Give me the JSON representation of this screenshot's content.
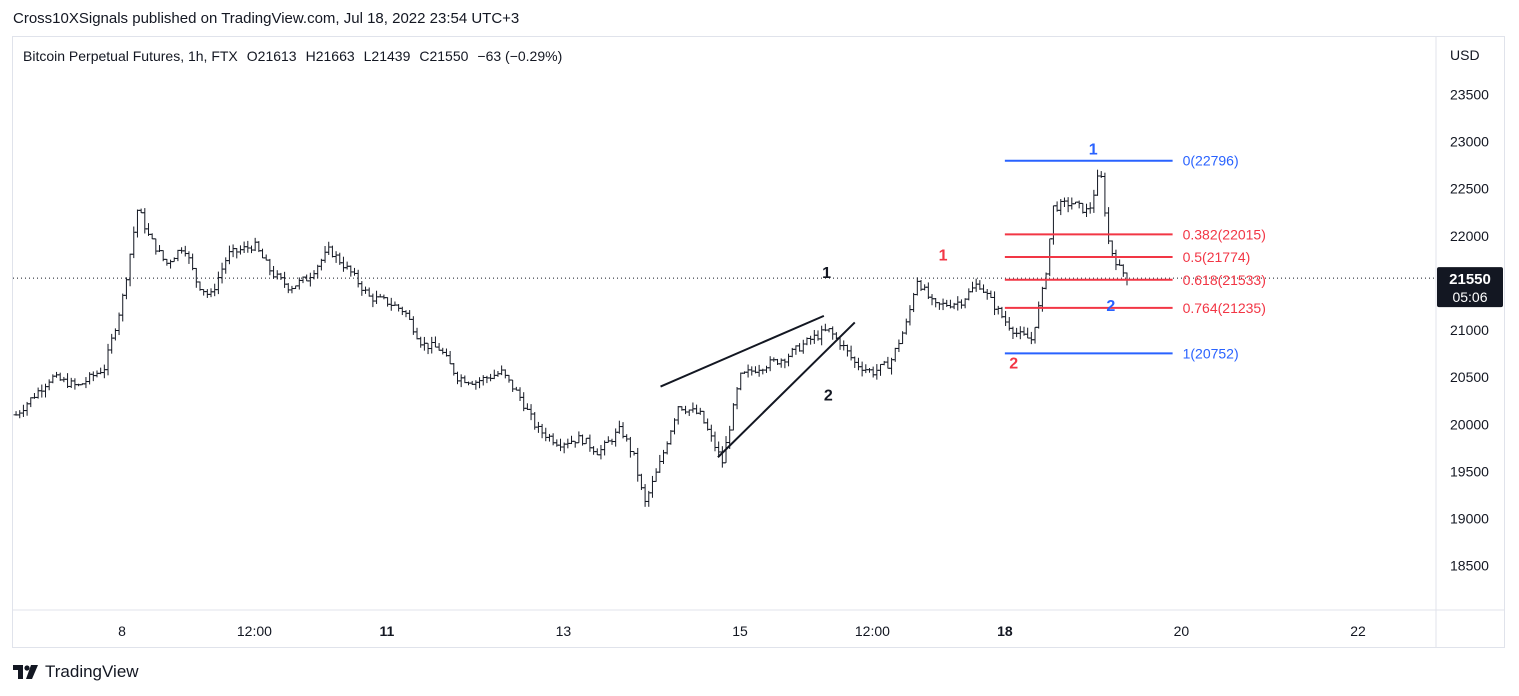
{
  "header": {
    "published_by": "Cross10XSignals published on TradingView.com, Jul 18, 2022 23:54 UTC+3"
  },
  "symbol_bar": {
    "title": "Bitcoin Perpetual Futures, 1h, FTX",
    "open": "O21613",
    "high": "H21663",
    "low": "L21439",
    "close": "C21550",
    "change": "−63 (−0.29%)"
  },
  "footer": {
    "brand": "TradingView",
    "logo_icon": "tradingview-logo-icon"
  },
  "colors": {
    "fib_blue": "#2962ff",
    "fib_red": "#f23645",
    "bars": "#131722",
    "price_label_bg": "#131722",
    "grid_border": "#e0e3eb"
  },
  "chart_data": {
    "type": "ohlc",
    "currency_label": "USD",
    "ylim": [
      18100,
      23800
    ],
    "y_ticks": [
      23500,
      23000,
      22500,
      22000,
      21500,
      21000,
      20500,
      20000,
      19500,
      19000,
      18500
    ],
    "x_ticks": [
      {
        "label": "8",
        "day": 8.0,
        "bold": false
      },
      {
        "label": "12:00",
        "day": 9.5,
        "bold": false
      },
      {
        "label": "11",
        "day": 11.0,
        "bold": true
      },
      {
        "label": "13",
        "day": 13.0,
        "bold": false
      },
      {
        "label": "15",
        "day": 15.0,
        "bold": false
      },
      {
        "label": "12:00",
        "day": 16.5,
        "bold": false
      },
      {
        "label": "18",
        "day": 18.0,
        "bold": true
      },
      {
        "label": "20",
        "day": 20.0,
        "bold": false
      },
      {
        "label": "22",
        "day": 22.0,
        "bold": false
      }
    ],
    "last_price": {
      "value": 21550,
      "label": "21550",
      "countdown": "05:06"
    },
    "price_path": [
      [
        6.8,
        20100
      ],
      [
        7.2,
        20500
      ],
      [
        7.5,
        20400
      ],
      [
        7.8,
        20600
      ],
      [
        8.0,
        21300
      ],
      [
        8.18,
        22300
      ],
      [
        8.3,
        22000
      ],
      [
        8.5,
        21700
      ],
      [
        8.7,
        21900
      ],
      [
        8.85,
        21500
      ],
      [
        9.0,
        21350
      ],
      [
        9.2,
        21800
      ],
      [
        9.5,
        21900
      ],
      [
        9.7,
        21600
      ],
      [
        9.9,
        21450
      ],
      [
        10.1,
        21550
      ],
      [
        10.35,
        21850
      ],
      [
        10.6,
        21600
      ],
      [
        10.8,
        21350
      ],
      [
        11.0,
        21300
      ],
      [
        11.2,
        21200
      ],
      [
        11.4,
        20850
      ],
      [
        11.6,
        20800
      ],
      [
        11.8,
        20500
      ],
      [
        12.0,
        20450
      ],
      [
        12.3,
        20550
      ],
      [
        12.5,
        20300
      ],
      [
        12.7,
        19950
      ],
      [
        12.95,
        19800
      ],
      [
        13.2,
        19850
      ],
      [
        13.4,
        19700
      ],
      [
        13.65,
        19950
      ],
      [
        13.8,
        19650
      ],
      [
        13.92,
        19150
      ],
      [
        14.1,
        19600
      ],
      [
        14.3,
        20200
      ],
      [
        14.55,
        20100
      ],
      [
        14.8,
        19600
      ],
      [
        15.0,
        20500
      ],
      [
        15.2,
        20600
      ],
      [
        15.5,
        20700
      ],
      [
        15.8,
        20900
      ],
      [
        16.0,
        21000
      ],
      [
        16.15,
        20850
      ],
      [
        16.3,
        20650
      ],
      [
        16.5,
        20550
      ],
      [
        16.7,
        20650
      ],
      [
        16.9,
        21100
      ],
      [
        17.0,
        21550
      ],
      [
        17.2,
        21250
      ],
      [
        17.5,
        21300
      ],
      [
        17.7,
        21500
      ],
      [
        17.85,
        21300
      ],
      [
        18.0,
        21100
      ],
      [
        18.15,
        20950
      ],
      [
        18.3,
        20900
      ],
      [
        18.45,
        21500
      ],
      [
        18.55,
        22300
      ],
      [
        18.75,
        22350
      ],
      [
        18.95,
        22250
      ],
      [
        19.08,
        22700
      ],
      [
        19.18,
        21900
      ],
      [
        19.3,
        21650
      ],
      [
        19.4,
        21550
      ]
    ],
    "rising_wedge": {
      "upper": [
        [
          14.1,
          20400
        ],
        [
          15.95,
          21150
        ]
      ],
      "lower": [
        [
          14.75,
          19650
        ],
        [
          16.3,
          21080
        ]
      ]
    },
    "fib_retracement": {
      "x_start": 18.0,
      "x_end": 19.9,
      "levels": [
        {
          "ratio": "0",
          "price": 22796,
          "label": "0(22796)",
          "color": "blue"
        },
        {
          "ratio": "0.382",
          "price": 22015,
          "label": "0.382(22015)",
          "color": "red"
        },
        {
          "ratio": "0.5",
          "price": 21774,
          "label": "0.5(21774)",
          "color": "red"
        },
        {
          "ratio": "0.618",
          "price": 21533,
          "label": "0.618(21533)",
          "color": "red"
        },
        {
          "ratio": "0.764",
          "price": 21235,
          "label": "0.764(21235)",
          "color": "red"
        },
        {
          "ratio": "1",
          "price": 20752,
          "label": "1(20752)",
          "color": "blue"
        }
      ]
    },
    "wave_labels": [
      {
        "text": "1",
        "day": 15.98,
        "price": 21550,
        "color": "black"
      },
      {
        "text": "2",
        "day": 16.0,
        "price": 20250,
        "color": "black"
      },
      {
        "text": "1",
        "day": 17.3,
        "price": 21740,
        "color": "red"
      },
      {
        "text": "2",
        "day": 18.1,
        "price": 20590,
        "color": "red"
      },
      {
        "text": "1",
        "day": 19.0,
        "price": 22860,
        "color": "blue"
      },
      {
        "text": "2",
        "day": 19.2,
        "price": 21200,
        "color": "blue"
      }
    ]
  }
}
